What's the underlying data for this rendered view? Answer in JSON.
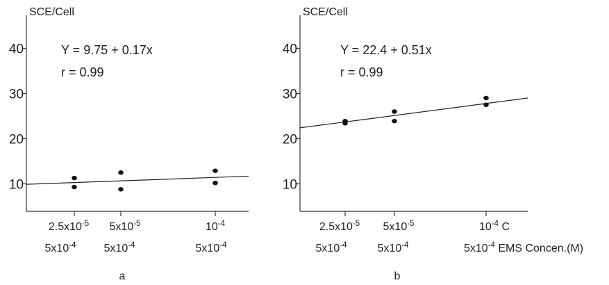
{
  "chart_data": [
    {
      "type": "scatter",
      "panel_label": "a",
      "ylabel": "SCE/Cell",
      "ylim": [
        0,
        40
      ],
      "yticks": [
        10,
        20,
        30,
        40
      ],
      "equation": "Y = 9.75 + 0.17x",
      "r_label": "r = 0.99",
      "x_ticks": [
        {
          "line1_base": "2.5x10",
          "line1_exp": "-5",
          "line2_base": "5x10",
          "line2_exp": "-4"
        },
        {
          "line1_base": "5x10",
          "line1_exp": "-5",
          "line2_base": "5x10",
          "line2_exp": "-4"
        },
        {
          "line1_base": "10",
          "line1_exp": "-4",
          "line2_base": "5x10",
          "line2_exp": "-4"
        }
      ],
      "xlabel": "",
      "points": [
        {
          "x_index": 0,
          "y": 11.3
        },
        {
          "x_index": 0,
          "y": 9.3
        },
        {
          "x_index": 1,
          "y": 12.5
        },
        {
          "x_index": 1,
          "y": 8.8
        },
        {
          "x_index": 2,
          "y": 12.9
        },
        {
          "x_index": 2,
          "y": 10.2
        }
      ],
      "fit_line": {
        "y_start": 9.9,
        "y_end": 11.7
      }
    },
    {
      "type": "scatter",
      "panel_label": "b",
      "ylabel": "SCE/Cell",
      "ylim": [
        0,
        40
      ],
      "yticks": [
        10,
        20,
        30,
        40
      ],
      "equation": "Y = 22.4 + 0.51x",
      "r_label": "r = 0.99",
      "x_ticks": [
        {
          "line1_base": "2.5x10",
          "line1_exp": "-5",
          "line2_base": "5x10",
          "line2_exp": "-4"
        },
        {
          "line1_base": "5x10",
          "line1_exp": "-5",
          "line2_base": "5x10",
          "line2_exp": "-4"
        },
        {
          "line1_base": "10",
          "line1_exp": "-4",
          "line1_suffix": " C",
          "line2_base": "5x10",
          "line2_exp": "-4",
          "line2_suffix": " EMS Concen.(M)"
        }
      ],
      "xlabel": "",
      "points": [
        {
          "x_index": 0,
          "y": 23.9
        },
        {
          "x_index": 0,
          "y": 23.4
        },
        {
          "x_index": 1,
          "y": 26.0
        },
        {
          "x_index": 1,
          "y": 23.9
        },
        {
          "x_index": 2,
          "y": 29.0
        },
        {
          "x_index": 2,
          "y": 27.5
        }
      ],
      "fit_line": {
        "y_start": 22.4,
        "y_end": 29.0
      }
    }
  ]
}
